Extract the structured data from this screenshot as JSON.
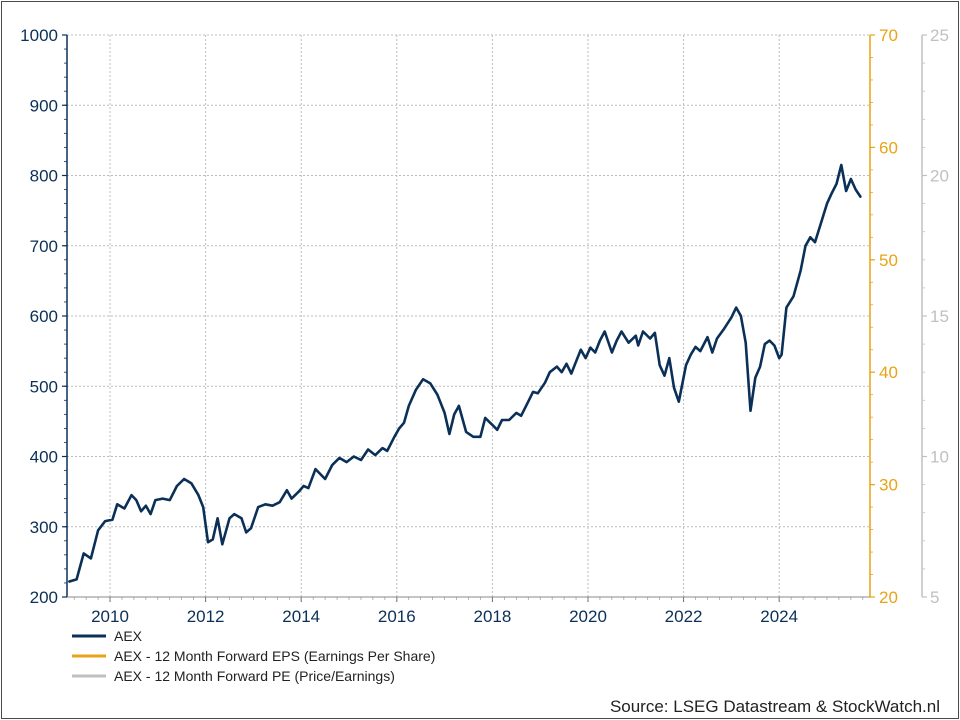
{
  "chart_data": {
    "type": "line",
    "x_ticks": [
      "2010",
      "2012",
      "2014",
      "2016",
      "2018",
      "2020",
      "2022",
      "2024"
    ],
    "xlim": [
      2009.1,
      2025.9
    ],
    "axes": {
      "left": {
        "ylim": [
          200,
          1000
        ],
        "ticks": [
          "200",
          "300",
          "400",
          "500",
          "600",
          "700",
          "800",
          "900",
          "1000"
        ],
        "color": "#0b3058"
      },
      "right1": {
        "ylim": [
          20,
          70
        ],
        "ticks": [
          "20",
          "30",
          "40",
          "50",
          "60",
          "70"
        ],
        "color": "#e8a317"
      },
      "right2": {
        "ylim": [
          5,
          25
        ],
        "ticks": [
          "5",
          "10",
          "15",
          "20",
          "25"
        ],
        "color": "#c0c0c0"
      }
    },
    "grid": true,
    "legend_position": "bottom-left",
    "series": [
      {
        "name": "AEX",
        "axis": "left",
        "color": "#0b3058",
        "points": [
          [
            2009.15,
            222
          ],
          [
            2009.3,
            225
          ],
          [
            2009.45,
            262
          ],
          [
            2009.6,
            255
          ],
          [
            2009.75,
            295
          ],
          [
            2009.9,
            308
          ],
          [
            2010.05,
            310
          ],
          [
            2010.15,
            332
          ],
          [
            2010.3,
            326
          ],
          [
            2010.45,
            345
          ],
          [
            2010.55,
            338
          ],
          [
            2010.65,
            322
          ],
          [
            2010.75,
            330
          ],
          [
            2010.85,
            318
          ],
          [
            2010.95,
            338
          ],
          [
            2011.1,
            340
          ],
          [
            2011.25,
            338
          ],
          [
            2011.4,
            358
          ],
          [
            2011.55,
            368
          ],
          [
            2011.7,
            362
          ],
          [
            2011.85,
            345
          ],
          [
            2011.95,
            328
          ],
          [
            2012.05,
            278
          ],
          [
            2012.15,
            282
          ],
          [
            2012.25,
            312
          ],
          [
            2012.35,
            275
          ],
          [
            2012.5,
            312
          ],
          [
            2012.6,
            318
          ],
          [
            2012.75,
            312
          ],
          [
            2012.85,
            292
          ],
          [
            2012.95,
            298
          ],
          [
            2013.1,
            328
          ],
          [
            2013.25,
            332
          ],
          [
            2013.4,
            330
          ],
          [
            2013.55,
            335
          ],
          [
            2013.7,
            352
          ],
          [
            2013.8,
            340
          ],
          [
            2013.95,
            350
          ],
          [
            2014.05,
            358
          ],
          [
            2014.15,
            355
          ],
          [
            2014.3,
            382
          ],
          [
            2014.5,
            368
          ],
          [
            2014.65,
            388
          ],
          [
            2014.8,
            398
          ],
          [
            2014.95,
            392
          ],
          [
            2015.1,
            400
          ],
          [
            2015.25,
            395
          ],
          [
            2015.4,
            410
          ],
          [
            2015.55,
            402
          ],
          [
            2015.7,
            412
          ],
          [
            2015.8,
            408
          ],
          [
            2015.95,
            428
          ],
          [
            2016.05,
            440
          ],
          [
            2016.15,
            448
          ],
          [
            2016.25,
            472
          ],
          [
            2016.4,
            495
          ],
          [
            2016.55,
            510
          ],
          [
            2016.7,
            504
          ],
          [
            2016.85,
            488
          ],
          [
            2017.0,
            462
          ],
          [
            2017.1,
            432
          ],
          [
            2017.2,
            460
          ],
          [
            2017.3,
            472
          ],
          [
            2017.45,
            435
          ],
          [
            2017.6,
            428
          ],
          [
            2017.75,
            428
          ],
          [
            2017.85,
            455
          ],
          [
            2018.0,
            445
          ],
          [
            2018.1,
            438
          ],
          [
            2018.2,
            452
          ],
          [
            2018.35,
            452
          ],
          [
            2018.5,
            462
          ],
          [
            2018.6,
            458
          ],
          [
            2018.75,
            478
          ],
          [
            2018.85,
            492
          ],
          [
            2018.95,
            490
          ],
          [
            2019.1,
            505
          ],
          [
            2019.2,
            520
          ],
          [
            2019.35,
            528
          ],
          [
            2019.45,
            520
          ],
          [
            2019.55,
            532
          ],
          [
            2019.65,
            518
          ],
          [
            2019.75,
            535
          ],
          [
            2019.85,
            552
          ],
          [
            2019.95,
            540
          ],
          [
            2020.05,
            555
          ],
          [
            2020.15,
            548
          ],
          [
            2020.25,
            565
          ],
          [
            2020.35,
            578
          ],
          [
            2020.5,
            548
          ],
          [
            2020.6,
            565
          ],
          [
            2020.7,
            578
          ],
          [
            2020.85,
            562
          ],
          [
            2021.0,
            572
          ],
          [
            2021.05,
            558
          ],
          [
            2021.15,
            578
          ],
          [
            2021.3,
            568
          ],
          [
            2021.4,
            576
          ],
          [
            2021.5,
            530
          ],
          [
            2021.6,
            515
          ],
          [
            2021.7,
            540
          ],
          [
            2021.8,
            498
          ],
          [
            2021.9,
            478
          ],
          [
            2022.05,
            530
          ],
          [
            2022.15,
            545
          ],
          [
            2022.25,
            556
          ],
          [
            2022.35,
            550
          ],
          [
            2022.5,
            570
          ],
          [
            2022.6,
            548
          ],
          [
            2022.7,
            568
          ],
          [
            2022.85,
            582
          ],
          [
            2023.0,
            598
          ],
          [
            2023.1,
            612
          ],
          [
            2023.2,
            600
          ],
          [
            2023.3,
            562
          ],
          [
            2023.4,
            465
          ],
          [
            2023.5,
            512
          ],
          [
            2023.6,
            528
          ],
          [
            2023.7,
            560
          ],
          [
            2023.8,
            565
          ],
          [
            2023.9,
            558
          ],
          [
            2024.0,
            540
          ],
          [
            2024.05,
            545
          ],
          [
            2024.15,
            612
          ],
          [
            2024.3,
            628
          ],
          [
            2024.45,
            665
          ],
          [
            2024.55,
            700
          ],
          [
            2024.65,
            712
          ],
          [
            2024.75,
            705
          ],
          [
            2024.9,
            738
          ],
          [
            2025.0,
            760
          ],
          [
            2025.1,
            775
          ],
          [
            2025.2,
            788
          ],
          [
            2025.3,
            815
          ],
          [
            2025.4,
            778
          ],
          [
            2025.5,
            795
          ],
          [
            2025.6,
            780
          ],
          [
            2025.7,
            770
          ]
        ]
      }
    ]
  },
  "legend": [
    {
      "label": "AEX",
      "color": "#0b3058"
    },
    {
      "label": "AEX - 12 Month Forward EPS (Earnings Per Share)",
      "color": "#e8a317"
    },
    {
      "label": "AEX - 12 Month Forward PE (Price/Earnings)",
      "color": "#c0c0c0"
    }
  ],
  "source": "Source: LSEG Datastream & StockWatch.nl"
}
